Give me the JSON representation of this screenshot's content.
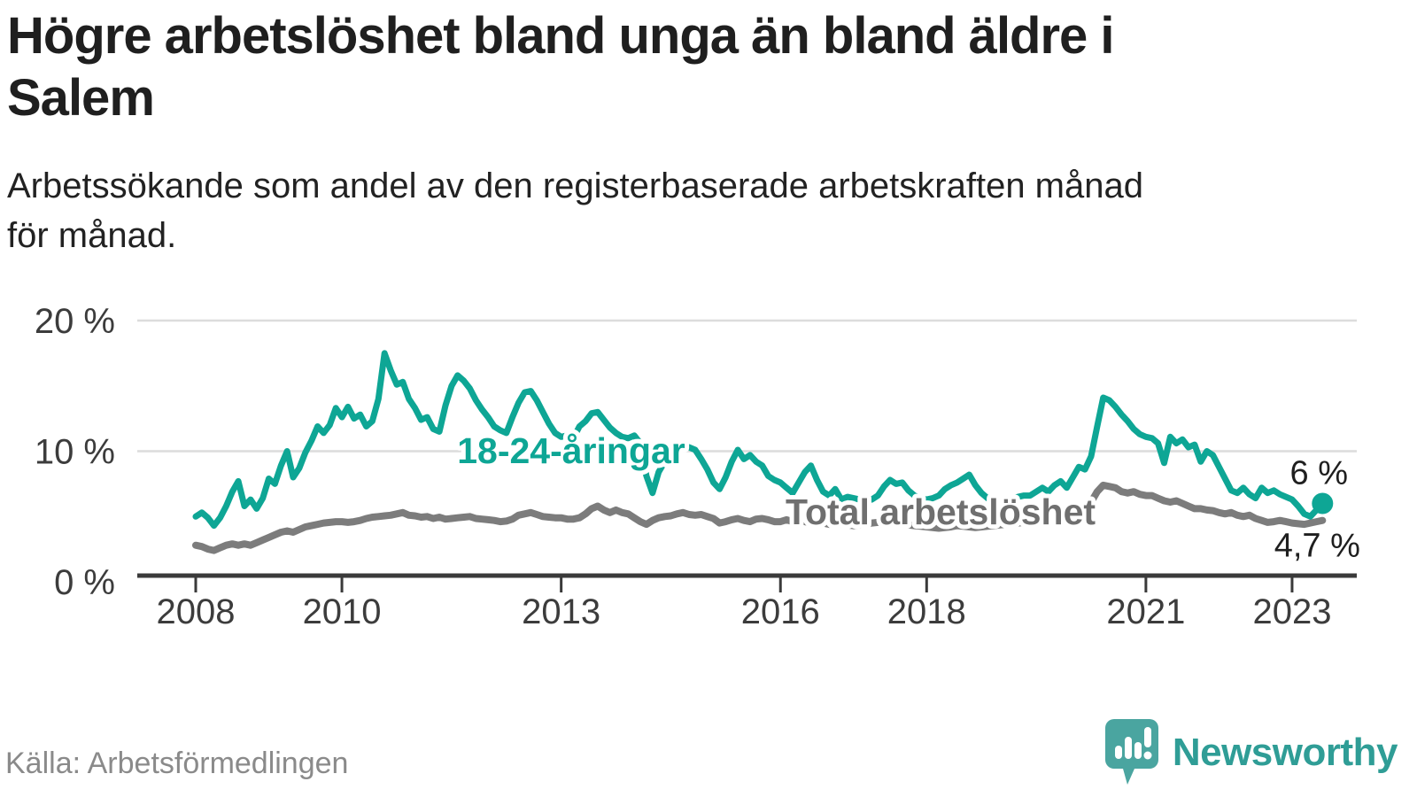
{
  "header": {
    "title_lines": [
      "Högre arbetslöshet bland unga än bland äldre i",
      "Salem"
    ],
    "subtitle_lines": [
      "Arbetssökande som andel av den registerbaserade arbetskraften månad",
      "för månad."
    ]
  },
  "footer": {
    "source": "Källa: Arbetsförmedlingen",
    "logo_text": "Newsworthy"
  },
  "colors": {
    "youth_line": "#0ea695",
    "total_line": "#7c7c7c",
    "total_label": "#6f6f6f",
    "axis": "#3a3a3a",
    "grid": "#dcdcdc",
    "logo_icon": "#4aa5a0",
    "logo_text": "#2f9d96"
  },
  "chart_data": {
    "type": "line",
    "title": "Högre arbetslöshet bland unga än bland äldre i Salem",
    "subtitle": "Arbetssökande som andel av den registerbaserade arbetskraften månad för månad.",
    "source": "Källa: Arbetsförmedlingen",
    "unit": "%",
    "frequency": "monthly",
    "x_start": "2008-01",
    "x_end": "2023-06",
    "ylim": [
      0,
      20
    ],
    "grid": "horizontal",
    "legend_position": "inline-annotations",
    "yticks": [
      {
        "value": 0,
        "label": "0 %"
      },
      {
        "value": 10,
        "label": "10 %"
      },
      {
        "value": 20,
        "label": "20 %"
      }
    ],
    "xticks": [
      {
        "year": 2008,
        "label": "2008"
      },
      {
        "year": 2010,
        "label": "2010"
      },
      {
        "year": 2013,
        "label": "2013"
      },
      {
        "year": 2016,
        "label": "2016"
      },
      {
        "year": 2018,
        "label": "2018"
      },
      {
        "year": 2021,
        "label": "2021"
      },
      {
        "year": 2023,
        "label": "2023"
      }
    ],
    "series": [
      {
        "name": "18-24-åringar",
        "color": "#0ea695",
        "latest_value": 6.0,
        "end_label": "6 %",
        "values": [
          5.0,
          5.3,
          4.9,
          4.3,
          4.9,
          5.8,
          6.9,
          7.7,
          5.8,
          6.3,
          5.6,
          6.4,
          7.9,
          7.5,
          8.9,
          10.0,
          8.0,
          8.7,
          9.9,
          10.8,
          11.9,
          11.4,
          12.0,
          13.3,
          12.6,
          13.4,
          12.5,
          12.8,
          11.9,
          12.3,
          14.0,
          17.5,
          16.2,
          15.1,
          15.3,
          14.0,
          13.3,
          12.4,
          12.6,
          11.7,
          11.5,
          13.5,
          15.0,
          15.8,
          15.4,
          14.8,
          13.9,
          13.2,
          12.6,
          11.9,
          11.6,
          11.4,
          12.6,
          13.7,
          14.5,
          14.6,
          13.9,
          13.0,
          12.1,
          11.4,
          11.1,
          11.2,
          11.0,
          11.9,
          12.3,
          12.9,
          13.0,
          12.4,
          11.8,
          11.4,
          11.1,
          11.0,
          11.2,
          10.6,
          8.1,
          6.8,
          8.4,
          9.2,
          9.8,
          10.2,
          10.4,
          10.3,
          10.1,
          9.4,
          8.6,
          7.6,
          7.1,
          8.0,
          9.2,
          10.1,
          9.4,
          9.7,
          9.2,
          8.9,
          8.1,
          7.8,
          7.6,
          7.2,
          6.8,
          7.6,
          8.4,
          8.9,
          7.8,
          6.9,
          6.6,
          7.1,
          6.3,
          6.5,
          6.4,
          6.3,
          6.2,
          6.3,
          6.6,
          7.3,
          7.8,
          7.5,
          7.6,
          7.0,
          6.6,
          6.4,
          6.3,
          6.4,
          6.6,
          7.1,
          7.4,
          7.6,
          7.9,
          8.2,
          7.4,
          6.8,
          6.4,
          6.2,
          6.2,
          6.3,
          6.3,
          6.5,
          6.6,
          6.6,
          6.9,
          7.2,
          6.9,
          7.4,
          7.7,
          7.2,
          8.0,
          8.8,
          8.6,
          9.6,
          11.9,
          14.1,
          13.9,
          13.4,
          12.8,
          12.3,
          11.7,
          11.3,
          11.1,
          11.0,
          10.6,
          9.1,
          11.1,
          10.6,
          10.9,
          10.3,
          10.5,
          9.2,
          10.0,
          9.7,
          8.8,
          7.9,
          7.0,
          6.8,
          7.2,
          6.7,
          6.4,
          7.2,
          6.8,
          7.0,
          6.7,
          6.5,
          6.3,
          5.8,
          5.2,
          5.0,
          5.5,
          6.0
        ]
      },
      {
        "name": "Total arbetslöshet",
        "color": "#7c7c7c",
        "latest_value": 4.7,
        "end_label": "4,7 %",
        "values": [
          2.8,
          2.7,
          2.5,
          2.4,
          2.6,
          2.8,
          2.9,
          2.8,
          2.9,
          2.8,
          3.0,
          3.2,
          3.4,
          3.6,
          3.8,
          3.9,
          3.8,
          4.0,
          4.2,
          4.3,
          4.4,
          4.5,
          4.55,
          4.6,
          4.6,
          4.55,
          4.6,
          4.7,
          4.85,
          4.95,
          5.0,
          5.05,
          5.1,
          5.2,
          5.3,
          5.1,
          5.05,
          4.95,
          5.0,
          4.85,
          4.95,
          4.8,
          4.85,
          4.9,
          4.95,
          5.0,
          4.85,
          4.8,
          4.75,
          4.7,
          4.6,
          4.65,
          4.8,
          5.1,
          5.2,
          5.3,
          5.15,
          5.0,
          4.95,
          4.9,
          4.9,
          4.8,
          4.8,
          4.9,
          5.2,
          5.6,
          5.8,
          5.5,
          5.3,
          5.5,
          5.3,
          5.2,
          4.9,
          4.6,
          4.4,
          4.7,
          4.9,
          5.0,
          5.05,
          5.2,
          5.3,
          5.15,
          5.1,
          5.15,
          5.0,
          4.85,
          4.5,
          4.6,
          4.75,
          4.85,
          4.7,
          4.6,
          4.8,
          4.85,
          4.75,
          4.6,
          4.6,
          4.75,
          4.6,
          4.7,
          4.6,
          4.5,
          4.45,
          4.5,
          4.4,
          4.5,
          4.4,
          4.35,
          4.3,
          4.35,
          4.4,
          4.5,
          4.55,
          4.6,
          4.5,
          4.45,
          4.4,
          4.35,
          4.3,
          4.25,
          4.2,
          4.15,
          4.1,
          4.15,
          4.2,
          4.3,
          4.25,
          4.2,
          4.15,
          4.2,
          4.25,
          4.3,
          4.35,
          4.4,
          4.45,
          4.5,
          4.55,
          4.6,
          4.65,
          4.6,
          4.55,
          4.6,
          4.65,
          4.7,
          4.8,
          5.0,
          5.4,
          6.1,
          6.9,
          7.4,
          7.3,
          7.2,
          6.9,
          6.8,
          6.9,
          6.7,
          6.6,
          6.6,
          6.4,
          6.2,
          6.1,
          6.2,
          6.0,
          5.8,
          5.6,
          5.6,
          5.5,
          5.45,
          5.3,
          5.2,
          5.3,
          5.1,
          5.0,
          5.1,
          4.85,
          4.7,
          4.55,
          4.6,
          4.7,
          4.6,
          4.5,
          4.45,
          4.4,
          4.5,
          4.6,
          4.7
        ]
      }
    ]
  }
}
